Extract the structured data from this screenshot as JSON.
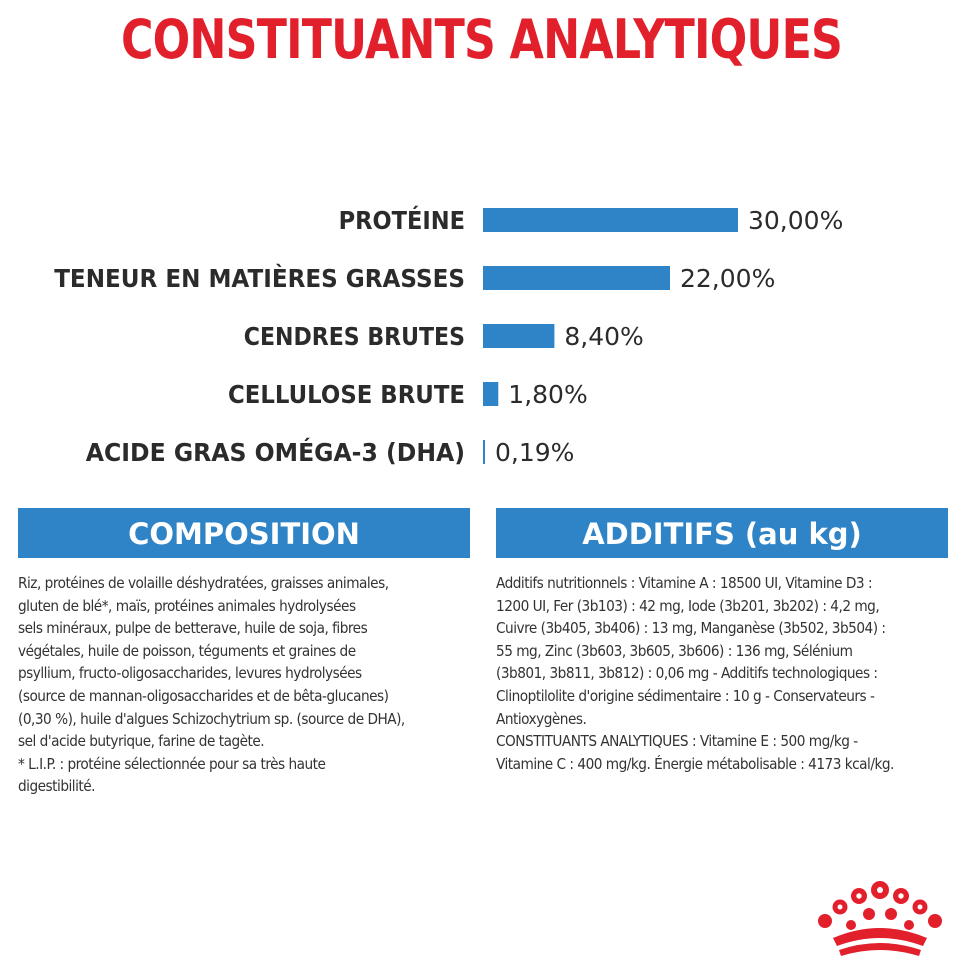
{
  "header": {
    "title": "CONSTITUANTS ANALYTIQUES"
  },
  "chart_data": {
    "type": "bar",
    "orientation": "horizontal",
    "categories": [
      "PROTÉINE",
      "TENEUR EN MATIÈRES GRASSES",
      "CENDRES BRUTES",
      "CELLULOSE BRUTE",
      "ACIDE GRAS OMÉGA-3 (DHA)"
    ],
    "values": [
      30.0,
      22.0,
      8.4,
      1.8,
      0.19
    ],
    "value_labels": [
      "30,00%",
      "22,00%",
      "8,40%",
      "1,80%",
      "0,19%"
    ],
    "bar_color": "#2e84c6",
    "grid": false
  },
  "composition": {
    "title": "COMPOSITION",
    "lines": [
      "Riz, protéines de volaille déshydratées, graisses animales,",
      "gluten de blé*, maïs, protéines animales hydrolysées",
      "sels minéraux, pulpe de betterave, huile de soja, fibres",
      "végétales, huile de poisson, téguments et graines de",
      "psyllium, fructo-oligosaccharides, levures hydrolysées",
      "(source de mannan-oligosaccharides et de bêta-glucanes)",
      "(0,30 %), huile d'algues Schizochytrium sp. (source de DHA),",
      "sel d'acide butyrique, farine de tagète.",
      "* L.I.P. : protéine sélectionnée pour sa très haute",
      "digestibilité."
    ]
  },
  "additifs": {
    "title": "ADDITIFS (au kg)",
    "lines": [
      "Additifs nutritionnels : Vitamine A : 18500 UI, Vitamine D3 :",
      "1200 UI, Fer (3b103) : 42 mg, Iode (3b201, 3b202) : 4,2 mg,",
      "Cuivre (3b405, 3b406) : 13 mg, Manganèse (3b502, 3b504) :",
      "55 mg, Zinc (3b603, 3b605, 3b606) : 136 mg, Sélénium",
      "(3b801, 3b811, 3b812) : 0,06 mg - Additifs technologiques :",
      "Clinoptilolite d'origine sédimentaire : 10 g - Conservateurs -",
      "Antioxygènes.",
      "CONSTITUANTS ANALYTIQUES : Vitamine E : 500 mg/kg -",
      "Vitamine C : 400 mg/kg. Énergie métabolisable : 4173 kcal/kg."
    ]
  },
  "logo": {
    "name": "crown-logo",
    "color": "#e2202c"
  }
}
